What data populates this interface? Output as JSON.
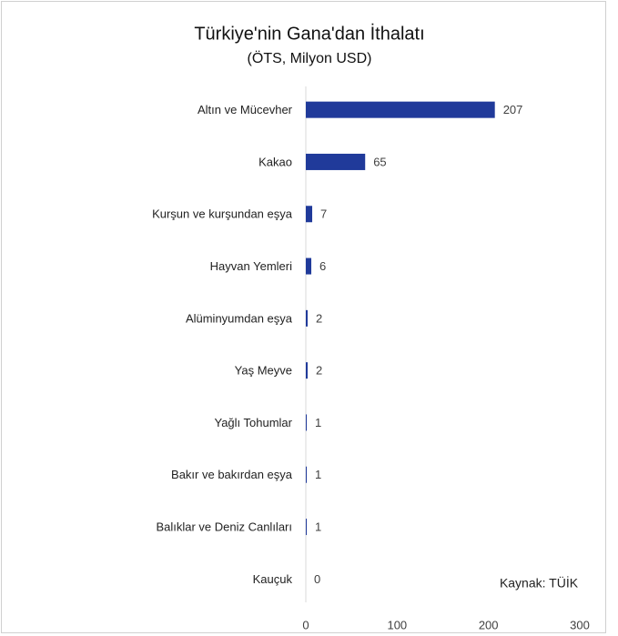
{
  "chart_data": {
    "type": "barh",
    "title": "Türkiye'nin Gana'dan İthalatı",
    "subtitle": "(ÖTS, Milyon USD)",
    "annotation": "Kaynak: TÜİK",
    "categories": [
      "Altın ve Mücevher",
      "Kakao",
      "Kurşun ve kurşundan eşya",
      "Hayvan Yemleri",
      "Alüminyumdan eşya",
      "Yaş Meyve",
      "Yağlı Tohumlar",
      "Bakır ve bakırdan eşya",
      "Balıklar ve Deniz Canlıları",
      "Kauçuk"
    ],
    "values": [
      207,
      65,
      7,
      6,
      2,
      2,
      1,
      1,
      1,
      0
    ],
    "color": "#203a9a",
    "xlim": [
      0,
      300
    ],
    "xticks": [
      0,
      100,
      200,
      300
    ],
    "grid": false
  }
}
